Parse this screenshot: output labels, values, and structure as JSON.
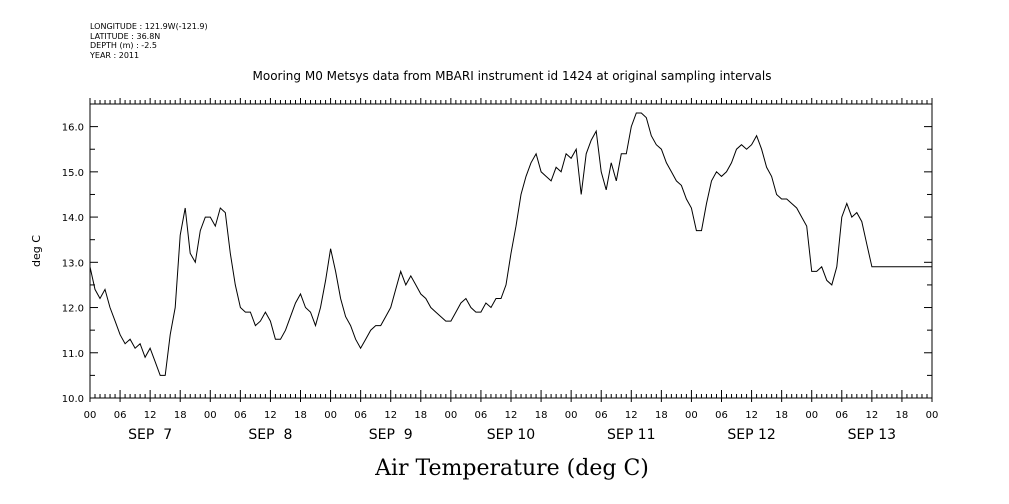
{
  "header": {
    "meta_lines": [
      "LONGITUDE : 121.9W(-121.9)",
      "LATITUDE : 36.8N",
      "DEPTH (m) : -2.5",
      "YEAR : 2011"
    ],
    "title": "Mooring M0 Metsys data from MBARI instrument id 1424 at original sampling intervals"
  },
  "footer": {
    "title": "Air Temperature (deg C)"
  },
  "chart_data": {
    "type": "line",
    "title": "Mooring M0 Metsys data from MBARI instrument id 1424 at original sampling intervals",
    "xlabel": "Air Temperature (deg C)",
    "ylabel": "deg C",
    "ylim": [
      10.0,
      16.5
    ],
    "yticks": [
      "10.0",
      "11.0",
      "12.0",
      "13.0",
      "14.0",
      "15.0",
      "16.0"
    ],
    "xlim_hours": [
      0,
      168
    ],
    "hour_tick_labels": [
      "00",
      "06",
      "12",
      "18",
      "00",
      "06",
      "12",
      "18",
      "00",
      "06",
      "12",
      "18",
      "00",
      "06",
      "12",
      "18",
      "00",
      "06",
      "12",
      "18",
      "00",
      "06",
      "12",
      "18",
      "00",
      "06",
      "12",
      "18",
      "00"
    ],
    "day_labels": [
      "SEP  7",
      "SEP  8",
      "SEP  9",
      "SEP 10",
      "SEP 11",
      "SEP 12",
      "SEP 13"
    ],
    "grid": false,
    "series": [
      {
        "x": [
          0,
          1,
          2,
          3,
          4,
          5,
          6,
          7,
          8,
          9,
          10,
          11,
          12,
          13,
          14,
          15,
          16,
          17,
          18,
          19,
          20,
          21,
          22,
          23,
          24,
          25,
          26,
          27,
          28,
          29,
          30,
          31,
          32,
          33,
          34,
          35,
          36,
          37,
          38,
          39,
          40,
          41,
          42,
          43,
          44,
          45,
          46,
          47,
          48,
          49,
          50,
          51,
          52,
          53,
          54,
          55,
          56,
          57,
          58,
          59,
          60,
          61,
          62,
          63,
          64,
          65,
          66,
          67,
          68,
          69,
          70,
          71,
          72,
          73,
          74,
          75,
          76,
          77,
          78,
          79,
          80,
          81,
          82,
          83,
          84,
          85,
          86,
          87,
          88,
          89,
          90,
          91,
          92,
          93,
          94,
          95,
          96,
          97,
          98,
          99,
          100,
          101,
          102,
          103,
          104,
          105,
          106,
          107,
          108,
          109,
          110,
          111,
          112,
          113,
          114,
          115,
          116,
          117,
          118,
          119,
          120,
          121,
          122,
          123,
          124,
          125,
          126,
          127,
          128,
          129,
          130,
          131,
          132,
          133,
          134,
          135,
          136,
          137,
          138,
          139,
          140,
          141,
          142,
          143,
          144,
          145,
          146,
          147,
          148,
          149,
          150,
          151,
          152,
          153,
          154,
          155,
          156,
          157,
          158,
          159,
          160,
          161,
          162,
          163,
          164,
          165,
          166,
          167,
          168
        ],
        "y": [
          12.9,
          12.4,
          12.2,
          12.4,
          12.0,
          11.7,
          11.4,
          11.2,
          11.3,
          11.1,
          11.2,
          10.9,
          11.1,
          10.8,
          10.5,
          10.5,
          11.4,
          12.0,
          13.6,
          14.2,
          13.2,
          13.0,
          13.7,
          14.0,
          14.0,
          13.8,
          14.2,
          14.1,
          13.2,
          12.5,
          12.0,
          11.9,
          11.9,
          11.6,
          11.7,
          11.9,
          11.7,
          11.3,
          11.3,
          11.5,
          11.8,
          12.1,
          12.3,
          12.0,
          11.9,
          11.6,
          12.0,
          12.6,
          13.3,
          12.8,
          12.2,
          11.8,
          11.6,
          11.3,
          11.1,
          11.3,
          11.5,
          11.6,
          11.6,
          11.8,
          12.0,
          12.4,
          12.8,
          12.5,
          12.7,
          12.5,
          12.3,
          12.2,
          12.0,
          11.9,
          11.8,
          11.7,
          11.7,
          11.9,
          12.1,
          12.2,
          12.0,
          11.9,
          11.9,
          12.1,
          12.0,
          12.2,
          12.2,
          12.5,
          13.2,
          13.8,
          14.5,
          14.9,
          15.2,
          15.4,
          15.0,
          14.9,
          14.8,
          15.1,
          15.0,
          15.4,
          15.3,
          15.5,
          14.5,
          15.4,
          15.7,
          15.9,
          15.0,
          14.6,
          15.2,
          14.8,
          15.4,
          15.4,
          16.0,
          16.3,
          16.3,
          16.2,
          15.8,
          15.6,
          15.5,
          15.2,
          15.0,
          14.8,
          14.7,
          14.4,
          14.2,
          13.7,
          13.7,
          14.3,
          14.8,
          15.0,
          14.9,
          15.0,
          15.2,
          15.5,
          15.6,
          15.5,
          15.6,
          15.8,
          15.5,
          15.1,
          14.9,
          14.5,
          14.4,
          14.4,
          14.3,
          14.2,
          14.0,
          13.8,
          12.8,
          12.8,
          12.9,
          12.6,
          12.5,
          12.9,
          14.0,
          14.3,
          14.0,
          14.1,
          13.9,
          13.4,
          12.9,
          12.9,
          12.9,
          12.9,
          12.9,
          12.9,
          12.9,
          12.9,
          12.9,
          12.9,
          12.9,
          12.9,
          12.9
        ]
      }
    ]
  }
}
